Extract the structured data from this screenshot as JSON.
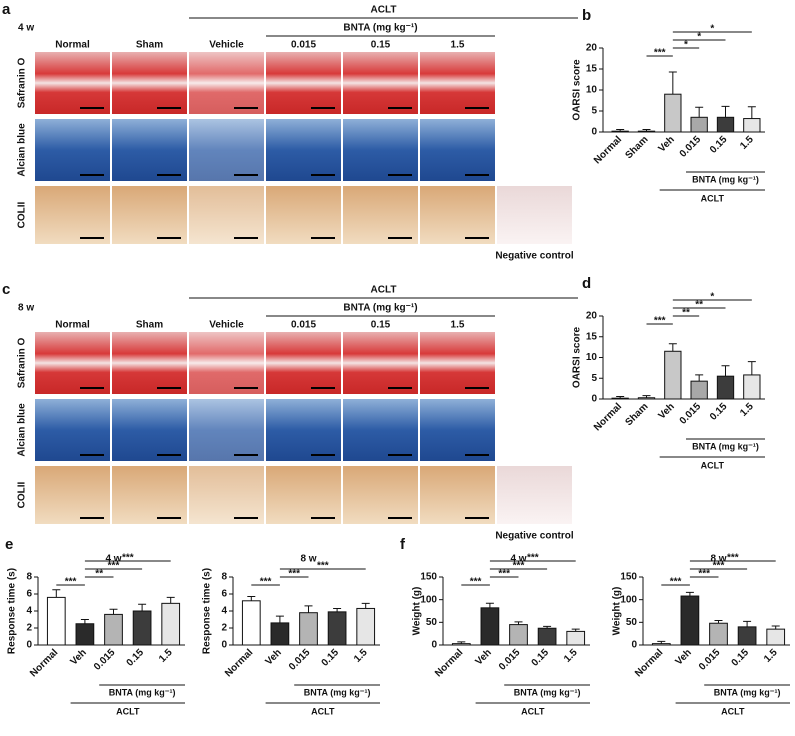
{
  "panels": [
    {
      "letter": "a",
      "timepoint": "4 w",
      "group": "ACLT",
      "subgroup": "BNTA (mg kg⁻¹)",
      "columns": [
        "Normal",
        "Sham",
        "Vehicle",
        "0.015",
        "0.15",
        "1.5"
      ],
      "rows": [
        "Safranin O",
        "Alcian blue",
        "COLII"
      ],
      "negative_control": "Negative control"
    },
    {
      "letter": "c",
      "timepoint": "8 w",
      "group": "ACLT",
      "subgroup": "BNTA (mg kg⁻¹)",
      "columns": [
        "Normal",
        "Sham",
        "Vehicle",
        "0.015",
        "0.15",
        "1.5"
      ],
      "rows": [
        "Safranin O",
        "Alcian blue",
        "COLII"
      ],
      "negative_control": "Negative control"
    }
  ],
  "chart_data": [
    {
      "letter": "b",
      "type": "bar",
      "ylabel": "OARSI score",
      "categories": [
        "Normal",
        "Sham",
        "Veh",
        "0.015",
        "0.15",
        "1.5"
      ],
      "values": [
        0.2,
        0.2,
        9,
        3.5,
        3.5,
        3.2
      ],
      "errors": [
        0.4,
        0.4,
        5.3,
        2.4,
        2.6,
        2.8
      ],
      "colors": [
        "#ffffff",
        "#ffffff",
        "#c8c8c8",
        "#a8a8a8",
        "#3c3c3c",
        "#e6e6e6"
      ],
      "ylim": [
        0,
        20
      ],
      "yticks": [
        0,
        5,
        10,
        15,
        20
      ],
      "subgroup": "BNTA (mg kg⁻¹)",
      "group": "ACLT",
      "comparisons": [
        {
          "label": "***",
          "between": [
            "Sham",
            "Veh"
          ]
        },
        {
          "label": "*",
          "between": [
            "Veh",
            "0.015"
          ]
        },
        {
          "label": "*",
          "between": [
            "Veh",
            "0.15"
          ]
        },
        {
          "label": "*",
          "between": [
            "Veh",
            "1.5"
          ]
        }
      ]
    },
    {
      "letter": "d",
      "type": "bar",
      "ylabel": "OARSI score",
      "categories": [
        "Normal",
        "Sham",
        "Veh",
        "0.015",
        "0.15",
        "1.5"
      ],
      "values": [
        0.2,
        0.3,
        11.5,
        4.3,
        5.5,
        5.8
      ],
      "errors": [
        0.4,
        0.5,
        1.8,
        1.5,
        2.5,
        3.2
      ],
      "colors": [
        "#ffffff",
        "#ffffff",
        "#c8c8c8",
        "#a8a8a8",
        "#3c3c3c",
        "#e6e6e6"
      ],
      "ylim": [
        0,
        20
      ],
      "yticks": [
        0,
        5,
        10,
        15,
        20
      ],
      "subgroup": "BNTA (mg kg⁻¹)",
      "group": "ACLT",
      "comparisons": [
        {
          "label": "***",
          "between": [
            "Sham",
            "Veh"
          ]
        },
        {
          "label": "**",
          "between": [
            "Veh",
            "0.015"
          ]
        },
        {
          "label": "**",
          "between": [
            "Veh",
            "0.15"
          ]
        },
        {
          "label": "*",
          "between": [
            "Veh",
            "1.5"
          ]
        }
      ]
    },
    {
      "letter": "e",
      "title": "4 w",
      "type": "bar",
      "ylabel": "Response time (s)",
      "categories": [
        "Normal",
        "Veh",
        "0.015",
        "0.15",
        "1.5"
      ],
      "values": [
        5.6,
        2.5,
        3.6,
        4.0,
        4.9
      ],
      "errors": [
        0.9,
        0.5,
        0.6,
        0.8,
        0.7
      ],
      "colors": [
        "#ffffff",
        "#2a2a2a",
        "#b4b4b4",
        "#3c3c3c",
        "#e6e6e6"
      ],
      "ylim": [
        0,
        8
      ],
      "yticks": [
        0,
        2,
        4,
        6,
        8
      ],
      "subgroup": "BNTA (mg kg⁻¹)",
      "group": "ACLT",
      "comparisons": [
        {
          "label": "***",
          "between": [
            "Normal",
            "Veh"
          ]
        },
        {
          "label": "**",
          "between": [
            "Veh",
            "0.015"
          ]
        },
        {
          "label": "***",
          "between": [
            "Veh",
            "0.15"
          ]
        },
        {
          "label": "***",
          "between": [
            "Veh",
            "1.5"
          ]
        }
      ]
    },
    {
      "title": "8 w",
      "type": "bar",
      "ylabel": "Response time (s)",
      "categories": [
        "Normal",
        "Veh",
        "0.015",
        "0.15",
        "1.5"
      ],
      "values": [
        5.2,
        2.6,
        3.8,
        3.9,
        4.3
      ],
      "errors": [
        0.5,
        0.8,
        0.8,
        0.4,
        0.6
      ],
      "colors": [
        "#ffffff",
        "#2a2a2a",
        "#b4b4b4",
        "#3c3c3c",
        "#e6e6e6"
      ],
      "ylim": [
        0,
        8
      ],
      "yticks": [
        0,
        2,
        4,
        6,
        8
      ],
      "subgroup": "BNTA (mg kg⁻¹)",
      "group": "ACLT",
      "comparisons": [
        {
          "label": "***",
          "between": [
            "Normal",
            "Veh"
          ]
        },
        {
          "label": "***",
          "between": [
            "Veh",
            "0.015"
          ]
        },
        {
          "label": "***",
          "between": [
            "Veh",
            "1.5"
          ]
        }
      ]
    },
    {
      "letter": "f",
      "title": "4 w",
      "type": "bar",
      "ylabel": "Weight (g)",
      "categories": [
        "Normal",
        "Veh",
        "0.015",
        "0.15",
        "1.5"
      ],
      "values": [
        3,
        82,
        45,
        37,
        30
      ],
      "errors": [
        4,
        10,
        6,
        4,
        5
      ],
      "colors": [
        "#ffffff",
        "#2a2a2a",
        "#b4b4b4",
        "#3c3c3c",
        "#e6e6e6"
      ],
      "ylim": [
        0,
        150
      ],
      "yticks": [
        0,
        50,
        100,
        150
      ],
      "subgroup": "BNTA (mg kg⁻¹)",
      "group": "ACLT",
      "comparisons": [
        {
          "label": "***",
          "between": [
            "Normal",
            "Veh"
          ]
        },
        {
          "label": "***",
          "between": [
            "Veh",
            "0.015"
          ]
        },
        {
          "label": "***",
          "between": [
            "Veh",
            "0.15"
          ]
        },
        {
          "label": "***",
          "between": [
            "Veh",
            "1.5"
          ]
        }
      ]
    },
    {
      "title": "8 w",
      "type": "bar",
      "ylabel": "Weight (g)",
      "categories": [
        "Normal",
        "Veh",
        "0.015",
        "0.15",
        "1.5"
      ],
      "values": [
        3,
        108,
        48,
        40,
        35
      ],
      "errors": [
        5,
        8,
        6,
        12,
        7
      ],
      "colors": [
        "#ffffff",
        "#2a2a2a",
        "#b4b4b4",
        "#3c3c3c",
        "#e6e6e6"
      ],
      "ylim": [
        0,
        150
      ],
      "yticks": [
        0,
        50,
        100,
        150
      ],
      "subgroup": "BNTA (mg kg⁻¹)",
      "group": "ACLT",
      "comparisons": [
        {
          "label": "***",
          "between": [
            "Normal",
            "Veh"
          ]
        },
        {
          "label": "***",
          "between": [
            "Veh",
            "0.015"
          ]
        },
        {
          "label": "***",
          "between": [
            "Veh",
            "0.15"
          ]
        },
        {
          "label": "***",
          "between": [
            "Veh",
            "1.5"
          ]
        }
      ]
    }
  ]
}
